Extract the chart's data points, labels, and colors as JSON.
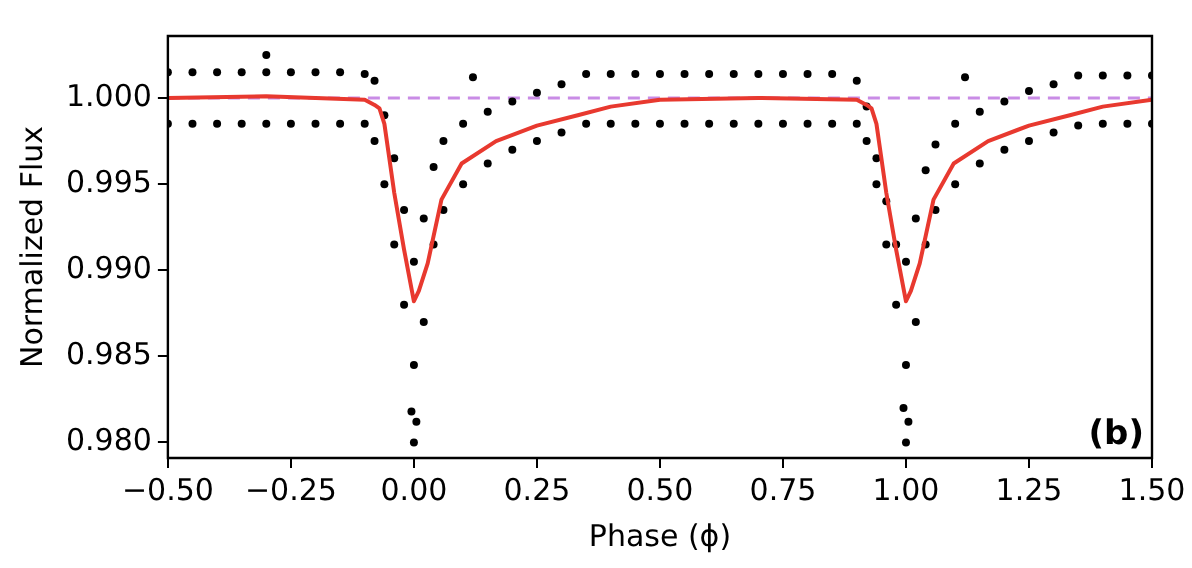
{
  "chart_data": {
    "type": "scatter",
    "xlabel": "Phase (ϕ)",
    "ylabel": "Normalized Flux",
    "xlim": [
      -0.5,
      1.5
    ],
    "xticks": [
      {
        "value": -0.5,
        "label": "−0.50"
      },
      {
        "value": -0.25,
        "label": "−0.25"
      },
      {
        "value": 0,
        "label": "0.00"
      },
      {
        "value": 0.25,
        "label": "0.25"
      },
      {
        "value": 0.5,
        "label": "0.50"
      },
      {
        "value": 0.75,
        "label": "0.75"
      },
      {
        "value": 1,
        "label": "1.00"
      },
      {
        "value": 1.25,
        "label": "1.25"
      },
      {
        "value": 1.5,
        "label": "1.50"
      }
    ],
    "ylim": [
      0.9791,
      1.0036
    ],
    "yticks": [
      {
        "value": 0.98,
        "label": "0.980"
      },
      {
        "value": 0.985,
        "label": "0.985"
      },
      {
        "value": 0.99,
        "label": "0.990"
      },
      {
        "value": 0.995,
        "label": "0.995"
      },
      {
        "value": 1,
        "label": "1.000"
      }
    ],
    "grid": false,
    "legend": false,
    "ref_lines": [
      {
        "axis": "y",
        "value": 1,
        "color": "#c98ce6",
        "line_style": "dashed"
      }
    ],
    "annotations": [
      "(b)"
    ],
    "series": [
      {
        "marker": "circle",
        "color": "#000000",
        "x": [
          -0.5,
          -0.45,
          -0.4,
          -0.35,
          -0.3,
          -0.25,
          -0.2,
          -0.15,
          -0.1,
          -0.08,
          -0.06,
          -0.04,
          -0.02,
          0,
          0.02,
          0.04,
          0.06,
          0.1,
          0.15,
          0.2,
          0.25,
          0.3,
          0.35,
          0.4,
          0.45,
          0.5,
          0.55,
          0.6,
          0.65,
          0.7,
          0.75,
          0.8,
          0.85,
          0.9,
          0.92,
          0.94,
          0.96,
          0.98,
          1,
          1.02,
          1.04,
          1.06,
          1.1,
          1.15,
          1.2,
          1.25,
          1.3,
          1.35,
          1.4,
          1.45,
          1.5,
          -0.5,
          -0.45,
          -0.4,
          -0.35,
          -0.3,
          -0.25,
          -0.2,
          -0.15,
          -0.1,
          -0.08,
          -0.06,
          -0.04,
          -0.02,
          0,
          0.02,
          0.04,
          0.06,
          0.1,
          0.15,
          0.2,
          0.25,
          0.3,
          0.35,
          0.4,
          0.45,
          0.5,
          0.55,
          0.6,
          0.65,
          0.7,
          0.75,
          0.8,
          0.85,
          0.9,
          0.92,
          0.94,
          0.96,
          0.98,
          1,
          1.02,
          1.04,
          1.06,
          1.1,
          1.15,
          1.2,
          1.25,
          1.3,
          1.35,
          1.4,
          1.45,
          1.5,
          0,
          0.005,
          -0.005,
          1,
          1.005,
          0.995,
          -0.3,
          0.12,
          1.12
        ],
        "values": [
          1.0015,
          1.0015,
          1.0015,
          1.0015,
          1.0015,
          1.0015,
          1.0015,
          1.0015,
          1.0014,
          1.001,
          0.999,
          0.9965,
          0.9935,
          0.9905,
          0.993,
          0.996,
          0.9975,
          0.9985,
          0.9992,
          0.9998,
          1.0003,
          1.0008,
          1.0014,
          1.0014,
          1.0014,
          1.0014,
          1.0014,
          1.0014,
          1.0014,
          1.0014,
          1.0014,
          1.0014,
          1.0014,
          1.001,
          0.9995,
          0.9965,
          0.994,
          0.9915,
          0.9905,
          0.993,
          0.9958,
          0.9973,
          0.9985,
          0.9992,
          0.9998,
          1.0004,
          1.0008,
          1.0013,
          1.0013,
          1.0013,
          1.0013,
          0.9985,
          0.9985,
          0.9985,
          0.9985,
          0.9985,
          0.9985,
          0.9985,
          0.9985,
          0.9985,
          0.9975,
          0.995,
          0.9915,
          0.988,
          0.9845,
          0.987,
          0.9915,
          0.9935,
          0.995,
          0.9962,
          0.997,
          0.9975,
          0.998,
          0.9985,
          0.9985,
          0.9985,
          0.9985,
          0.9985,
          0.9985,
          0.9985,
          0.9985,
          0.9985,
          0.9985,
          0.9985,
          0.9985,
          0.9975,
          0.995,
          0.9915,
          0.988,
          0.9845,
          0.987,
          0.9915,
          0.9935,
          0.995,
          0.9962,
          0.997,
          0.9975,
          0.998,
          0.9984,
          0.9985,
          0.9985,
          0.9985,
          0.98,
          0.9812,
          0.9818,
          0.98,
          0.9812,
          0.982,
          1.0025,
          1.0012,
          1.0012
        ]
      },
      {
        "type": "line",
        "marker": "none",
        "color": "#e8392f",
        "x": [
          -0.5,
          -0.3,
          -0.1,
          -0.08,
          -0.07,
          -0.06,
          -0.05,
          -0.04,
          -0.02,
          0,
          0.01,
          0.028,
          0.056,
          0.097,
          0.167,
          0.25,
          0.333,
          0.4,
          0.5,
          0.7,
          0.9,
          0.92,
          0.93,
          0.94,
          0.95,
          0.96,
          0.98,
          1,
          1.01,
          1.028,
          1.056,
          1.097,
          1.167,
          1.25,
          1.333,
          1.4,
          1.5
        ],
        "values": [
          1.0,
          1.0001,
          0.9999,
          0.9996,
          0.9994,
          0.9985,
          0.9965,
          0.9945,
          0.9912,
          0.9882,
          0.9888,
          0.9904,
          0.9941,
          0.9962,
          0.9975,
          0.9984,
          0.999,
          0.9995,
          0.9999,
          1.0,
          0.9999,
          0.9996,
          0.9994,
          0.9985,
          0.9965,
          0.9945,
          0.9912,
          0.9882,
          0.9888,
          0.9904,
          0.9941,
          0.9962,
          0.9975,
          0.9984,
          0.999,
          0.9995,
          0.9999
        ]
      }
    ]
  }
}
